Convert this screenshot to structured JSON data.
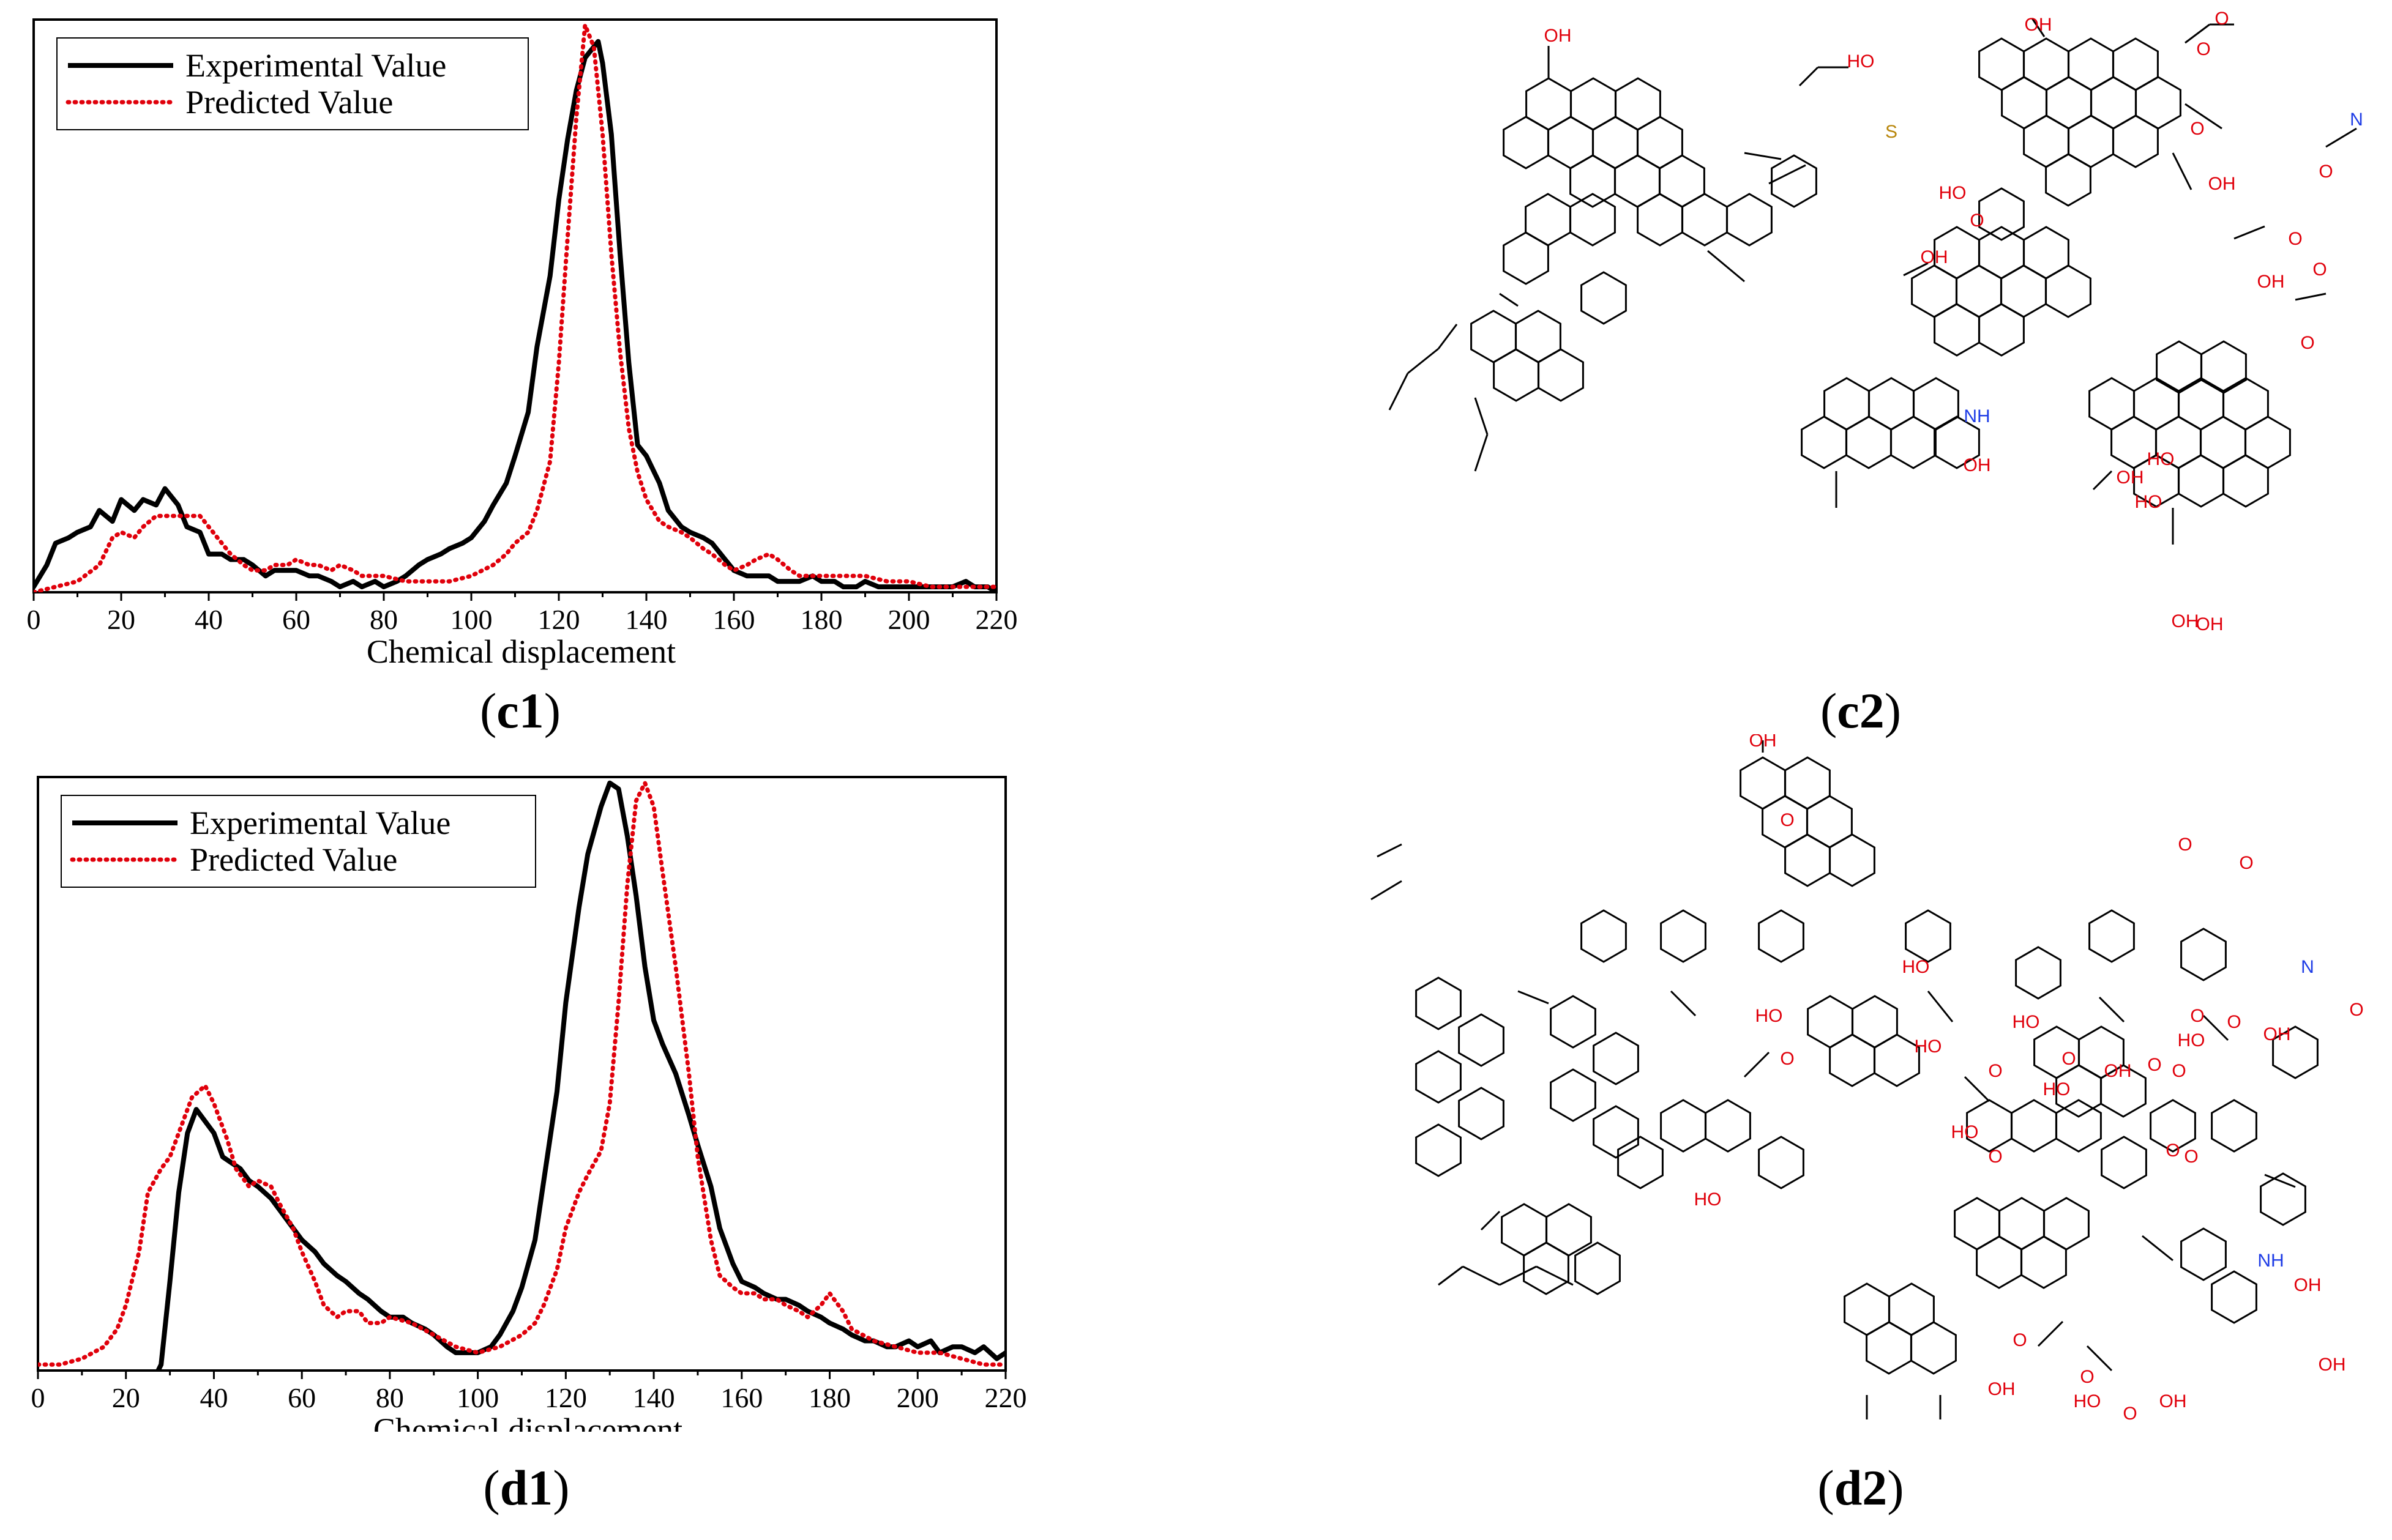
{
  "chart_data": [
    {
      "id": "c1",
      "type": "line",
      "xlabel": "Chemical displacement",
      "ylabel": "",
      "xlim": [
        0,
        220
      ],
      "ylim": [
        0,
        1.05
      ],
      "xticks": [
        "0",
        "20",
        "40",
        "60",
        "80",
        "100",
        "120",
        "140",
        "160",
        "180",
        "200",
        "220"
      ],
      "legend_position": "top-left",
      "grid": false,
      "series": [
        {
          "name": "Experimental Value",
          "color": "#000000",
          "style": "solid",
          "x": [
            0,
            3,
            5,
            8,
            10,
            13,
            15,
            18,
            20,
            23,
            25,
            28,
            30,
            33,
            35,
            38,
            40,
            43,
            45,
            48,
            50,
            53,
            55,
            58,
            60,
            63,
            65,
            68,
            70,
            73,
            75,
            78,
            80,
            83,
            85,
            88,
            90,
            93,
            95,
            98,
            100,
            103,
            105,
            108,
            110,
            113,
            115,
            118,
            120,
            122,
            124,
            126,
            128,
            129,
            130,
            132,
            134,
            136,
            138,
            140,
            143,
            145,
            148,
            150,
            153,
            155,
            158,
            160,
            163,
            165,
            168,
            170,
            173,
            175,
            178,
            180,
            183,
            185,
            188,
            190,
            193,
            195,
            198,
            200,
            203,
            205,
            208,
            210,
            213,
            215,
            218,
            220
          ],
          "y": [
            0.01,
            0.05,
            0.09,
            0.1,
            0.11,
            0.12,
            0.15,
            0.13,
            0.17,
            0.15,
            0.17,
            0.16,
            0.19,
            0.16,
            0.12,
            0.11,
            0.07,
            0.07,
            0.06,
            0.06,
            0.05,
            0.03,
            0.04,
            0.04,
            0.04,
            0.03,
            0.03,
            0.02,
            0.01,
            0.02,
            0.01,
            0.02,
            0.01,
            0.02,
            0.03,
            0.05,
            0.06,
            0.07,
            0.08,
            0.09,
            0.1,
            0.13,
            0.16,
            0.2,
            0.25,
            0.33,
            0.45,
            0.58,
            0.72,
            0.83,
            0.92,
            0.98,
            1.0,
            1.01,
            0.97,
            0.84,
            0.62,
            0.42,
            0.27,
            0.25,
            0.2,
            0.15,
            0.12,
            0.11,
            0.1,
            0.09,
            0.06,
            0.04,
            0.03,
            0.03,
            0.03,
            0.02,
            0.02,
            0.02,
            0.03,
            0.02,
            0.02,
            0.01,
            0.01,
            0.02,
            0.01,
            0.01,
            0.01,
            0.01,
            0.01,
            0.01,
            0.01,
            0.01,
            0.02,
            0.01,
            0.01,
            0.0
          ]
        },
        {
          "name": "Predicted Value",
          "color": "#e0000b",
          "style": "dotted",
          "x": [
            0,
            5,
            10,
            15,
            18,
            20,
            23,
            25,
            28,
            30,
            33,
            35,
            38,
            40,
            43,
            45,
            48,
            50,
            53,
            55,
            58,
            60,
            63,
            65,
            68,
            70,
            73,
            75,
            78,
            80,
            85,
            90,
            95,
            100,
            105,
            108,
            110,
            113,
            115,
            118,
            120,
            122,
            124,
            126,
            128,
            130,
            132,
            134,
            136,
            138,
            140,
            143,
            145,
            148,
            150,
            153,
            155,
            158,
            160,
            163,
            165,
            168,
            170,
            173,
            175,
            180,
            185,
            190,
            195,
            200,
            205,
            210,
            215,
            220
          ],
          "y": [
            0.0,
            0.01,
            0.02,
            0.05,
            0.1,
            0.11,
            0.1,
            0.12,
            0.14,
            0.14,
            0.14,
            0.14,
            0.14,
            0.12,
            0.09,
            0.07,
            0.05,
            0.04,
            0.04,
            0.05,
            0.05,
            0.06,
            0.05,
            0.05,
            0.04,
            0.05,
            0.04,
            0.03,
            0.03,
            0.03,
            0.02,
            0.02,
            0.02,
            0.03,
            0.05,
            0.07,
            0.09,
            0.11,
            0.15,
            0.24,
            0.42,
            0.65,
            0.87,
            1.04,
            1.0,
            0.84,
            0.62,
            0.44,
            0.3,
            0.22,
            0.17,
            0.13,
            0.12,
            0.11,
            0.1,
            0.08,
            0.07,
            0.05,
            0.04,
            0.05,
            0.06,
            0.07,
            0.06,
            0.04,
            0.03,
            0.03,
            0.03,
            0.03,
            0.02,
            0.02,
            0.01,
            0.01,
            0.01,
            0.01
          ]
        }
      ]
    },
    {
      "id": "d1",
      "type": "line",
      "xlabel": "Chemical displacement",
      "ylabel": "",
      "xlim": [
        0,
        220
      ],
      "ylim": [
        0,
        1.0
      ],
      "xticks": [
        "0",
        "20",
        "40",
        "60",
        "80",
        "100",
        "120",
        "140",
        "160",
        "180",
        "200",
        "220"
      ],
      "legend_position": "top-left",
      "grid": false,
      "series": [
        {
          "name": "Experimental Value",
          "color": "#000000",
          "style": "solid",
          "x": [
            26,
            28,
            30,
            32,
            34,
            36,
            38,
            40,
            42,
            44,
            46,
            48,
            50,
            53,
            55,
            58,
            60,
            63,
            65,
            68,
            70,
            73,
            75,
            78,
            80,
            83,
            85,
            88,
            90,
            93,
            95,
            98,
            100,
            103,
            105,
            108,
            110,
            113,
            115,
            118,
            120,
            123,
            125,
            128,
            130,
            132,
            134,
            136,
            138,
            140,
            142,
            145,
            148,
            150,
            153,
            155,
            158,
            160,
            163,
            165,
            168,
            170,
            173,
            175,
            178,
            180,
            183,
            185,
            188,
            190,
            193,
            195,
            198,
            200,
            203,
            205,
            208,
            210,
            213,
            215,
            218,
            220
          ],
          "y": [
            -0.02,
            0.01,
            0.15,
            0.3,
            0.4,
            0.44,
            0.42,
            0.4,
            0.36,
            0.35,
            0.34,
            0.32,
            0.31,
            0.29,
            0.27,
            0.24,
            0.22,
            0.2,
            0.18,
            0.16,
            0.15,
            0.13,
            0.12,
            0.1,
            0.09,
            0.09,
            0.08,
            0.07,
            0.06,
            0.04,
            0.03,
            0.03,
            0.03,
            0.04,
            0.06,
            0.1,
            0.14,
            0.22,
            0.32,
            0.47,
            0.62,
            0.78,
            0.87,
            0.95,
            0.99,
            0.98,
            0.9,
            0.8,
            0.68,
            0.59,
            0.55,
            0.5,
            0.43,
            0.38,
            0.31,
            0.24,
            0.18,
            0.15,
            0.14,
            0.13,
            0.12,
            0.12,
            0.11,
            0.1,
            0.09,
            0.08,
            0.07,
            0.06,
            0.05,
            0.05,
            0.04,
            0.04,
            0.05,
            0.04,
            0.05,
            0.03,
            0.04,
            0.04,
            0.03,
            0.04,
            0.02,
            0.03
          ]
        },
        {
          "name": "Predicted Value",
          "color": "#e0000b",
          "style": "dotted",
          "x": [
            0,
            5,
            10,
            15,
            18,
            20,
            23,
            25,
            28,
            30,
            33,
            35,
            38,
            40,
            43,
            45,
            48,
            50,
            53,
            55,
            58,
            60,
            63,
            65,
            68,
            70,
            73,
            75,
            78,
            80,
            85,
            90,
            95,
            100,
            105,
            110,
            113,
            115,
            118,
            120,
            123,
            125,
            128,
            130,
            132,
            134,
            136,
            138,
            140,
            142,
            145,
            148,
            150,
            153,
            155,
            158,
            160,
            163,
            165,
            168,
            170,
            173,
            175,
            178,
            180,
            183,
            185,
            190,
            195,
            200,
            205,
            210,
            215,
            220
          ],
          "y": [
            0.01,
            0.01,
            0.02,
            0.04,
            0.07,
            0.11,
            0.2,
            0.3,
            0.34,
            0.36,
            0.42,
            0.46,
            0.48,
            0.45,
            0.39,
            0.34,
            0.31,
            0.32,
            0.31,
            0.28,
            0.24,
            0.2,
            0.15,
            0.11,
            0.09,
            0.1,
            0.1,
            0.08,
            0.08,
            0.09,
            0.08,
            0.06,
            0.04,
            0.03,
            0.04,
            0.06,
            0.08,
            0.11,
            0.17,
            0.24,
            0.3,
            0.33,
            0.37,
            0.45,
            0.62,
            0.82,
            0.96,
            0.99,
            0.95,
            0.84,
            0.68,
            0.5,
            0.36,
            0.22,
            0.16,
            0.14,
            0.13,
            0.13,
            0.12,
            0.12,
            0.11,
            0.1,
            0.09,
            0.11,
            0.13,
            0.1,
            0.07,
            0.05,
            0.04,
            0.03,
            0.03,
            0.02,
            0.01,
            0.01
          ]
        }
      ]
    }
  ],
  "captions": {
    "c1": "c1",
    "c2": "c2",
    "d1": "d1",
    "d2": "d2"
  },
  "molecules": {
    "c2_labels": [
      "OH",
      "HO",
      "OH",
      "O",
      "O",
      "O",
      "OH",
      "O",
      "OH",
      "S",
      "N",
      "O",
      "HO",
      "O",
      "OH",
      "NH",
      "OH",
      "O",
      "HO",
      "OH",
      "HO",
      "O",
      "OH",
      "OH"
    ],
    "d2_labels": [
      "OH",
      "O",
      "HO",
      "O",
      "N",
      "O",
      "HO",
      "O",
      "HO",
      "O",
      "HO",
      "O",
      "HO",
      "O",
      "O",
      "O",
      "OH",
      "O",
      "HO",
      "OH",
      "O",
      "O",
      "OH",
      "HO",
      "O",
      "HO",
      "NH",
      "OH",
      "O",
      "OH",
      "O",
      "HO",
      "O",
      "OH",
      "O"
    ]
  }
}
